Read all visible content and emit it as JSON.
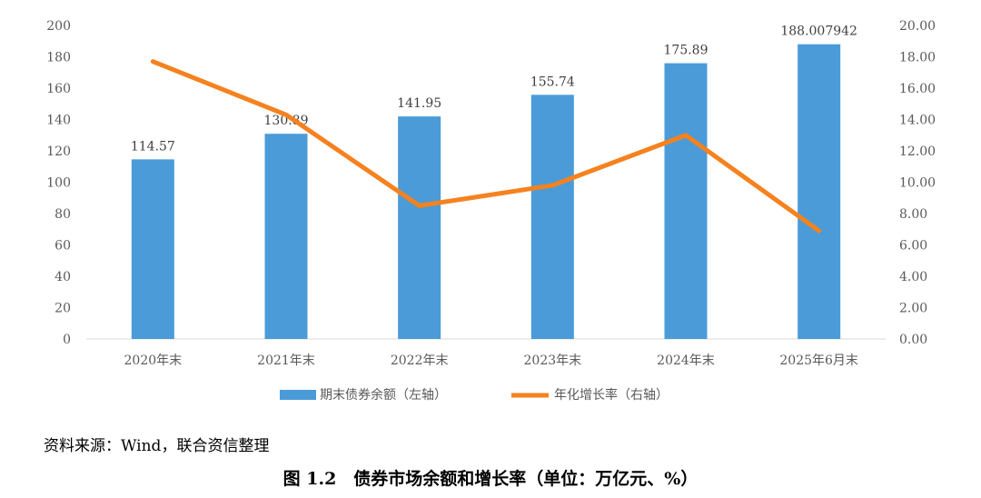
{
  "chart_data": {
    "type": "bar",
    "categories": [
      "2020年末",
      "2021年末",
      "2022年末",
      "2023年末",
      "2024年末",
      "2025年6月末"
    ],
    "series": [
      {
        "name": "期末债券余额（左轴）",
        "type": "bar",
        "axis": "left",
        "color": "#4a9bd8",
        "values": [
          114.57,
          130.89,
          141.95,
          155.74,
          175.89,
          188.007942
        ],
        "labels": [
          "114.57",
          "130.89",
          "141.95",
          "155.74",
          "175.89",
          "188.007942"
        ]
      },
      {
        "name": "年化增长率（右轴）",
        "type": "line",
        "axis": "right",
        "color": "#f5821f",
        "values": [
          17.7,
          14.3,
          8.5,
          9.8,
          13.0,
          6.9
        ]
      }
    ],
    "y_left": {
      "ylim": [
        0,
        200
      ],
      "ticks": [
        "0",
        "20",
        "40",
        "60",
        "80",
        "100",
        "120",
        "140",
        "160",
        "180",
        "200"
      ]
    },
    "y_right": {
      "ylim": [
        0,
        20
      ],
      "ticks": [
        "0.00",
        "2.00",
        "4.00",
        "6.00",
        "8.00",
        "10.00",
        "12.00",
        "14.00",
        "16.00",
        "18.00",
        "20.00"
      ]
    },
    "grid": false,
    "legend": "bottom-center"
  },
  "source_text": "资料来源：Wind，联合资信整理",
  "caption": "图 1.2　债券市场余额和增长率（单位：万亿元、%）"
}
